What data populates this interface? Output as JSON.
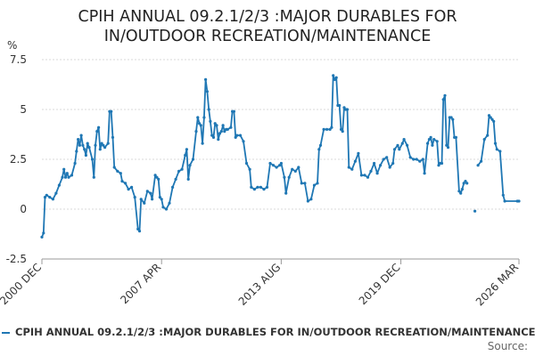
{
  "title": {
    "line1": "CPIH ANNUAL 09.2.1/2/3 :MAJOR DURABLES FOR",
    "line2": "IN/OUTDOOR RECREATION/MAINTENANCE"
  },
  "legend": {
    "label": "CPIH ANNUAL 09.2.1/2/3 :MAJOR DURABLES FOR IN/OUTDOOR RECREATION/MAINTENANCE"
  },
  "source": {
    "label": "Source:"
  },
  "colors": {
    "series": "#1f77b4",
    "grid": "#d9d9d9",
    "axis": "#999999"
  },
  "chart_data": {
    "type": "line",
    "ylabel": "%",
    "ylim": [
      -2.5,
      7.5
    ],
    "yticks": [
      -2.5,
      0,
      2.5,
      5,
      7.5
    ],
    "ytick_labels": [
      "-2.5",
      "0",
      "2.5",
      "5",
      "7.5"
    ],
    "x_range": [
      "2000-12",
      "2026-03"
    ],
    "xticks": [
      {
        "date": "2000-12",
        "label": "2000 DEC"
      },
      {
        "date": "2007-04",
        "label": "2007 APR"
      },
      {
        "date": "2013-08",
        "label": "2013 AUG"
      },
      {
        "date": "2019-12",
        "label": "2019 DEC"
      },
      {
        "date": "2026-03",
        "label": "2026 MAR"
      }
    ],
    "grid": true,
    "legend_position": "bottom",
    "series": [
      {
        "name": "CPIH ANNUAL 09.2.1/2/3 :MAJOR DURABLES FOR IN/OUTDOOR RECREATION/MAINTENANCE",
        "points": [
          [
            "2000-12",
            -1.4
          ],
          [
            "2001-01",
            -1.2
          ],
          [
            "2001-02",
            0.6
          ],
          [
            "2001-03",
            0.7
          ],
          [
            "2001-05",
            0.6
          ],
          [
            "2001-07",
            0.5
          ],
          [
            "2001-09",
            0.8
          ],
          [
            "2001-11",
            1.2
          ],
          [
            "2002-01",
            1.6
          ],
          [
            "2002-02",
            2.0
          ],
          [
            "2002-03",
            1.6
          ],
          [
            "2002-04",
            1.8
          ],
          [
            "2002-05",
            1.6
          ],
          [
            "2002-07",
            1.7
          ],
          [
            "2002-09",
            2.3
          ],
          [
            "2002-10",
            2.9
          ],
          [
            "2002-11",
            3.5
          ],
          [
            "2002-12",
            3.2
          ],
          [
            "2003-01",
            3.7
          ],
          [
            "2003-02",
            3.2
          ],
          [
            "2003-03",
            3.0
          ],
          [
            "2003-04",
            2.7
          ],
          [
            "2003-05",
            3.3
          ],
          [
            "2003-06",
            3.1
          ],
          [
            "2003-08",
            2.5
          ],
          [
            "2003-09",
            1.6
          ],
          [
            "2003-10",
            3.2
          ],
          [
            "2003-11",
            3.9
          ],
          [
            "2003-12",
            4.1
          ],
          [
            "2004-01",
            3.0
          ],
          [
            "2004-02",
            3.3
          ],
          [
            "2004-03",
            3.2
          ],
          [
            "2004-04",
            3.1
          ],
          [
            "2004-06",
            3.3
          ],
          [
            "2004-07",
            4.9
          ],
          [
            "2004-08",
            4.9
          ],
          [
            "2004-09",
            3.6
          ],
          [
            "2004-10",
            2.1
          ],
          [
            "2004-12",
            1.9
          ],
          [
            "2005-02",
            1.8
          ],
          [
            "2005-03",
            1.4
          ],
          [
            "2005-05",
            1.3
          ],
          [
            "2005-07",
            1.0
          ],
          [
            "2005-09",
            1.1
          ],
          [
            "2005-11",
            0.6
          ],
          [
            "2006-01",
            -1.0
          ],
          [
            "2006-02",
            -1.1
          ],
          [
            "2006-03",
            0.5
          ],
          [
            "2006-05",
            0.3
          ],
          [
            "2006-07",
            0.9
          ],
          [
            "2006-09",
            0.8
          ],
          [
            "2006-10",
            0.5
          ],
          [
            "2006-12",
            1.7
          ],
          [
            "2007-01",
            1.6
          ],
          [
            "2007-02",
            1.5
          ],
          [
            "2007-03",
            0.6
          ],
          [
            "2007-04",
            0.5
          ],
          [
            "2007-05",
            0.1
          ],
          [
            "2007-07",
            0.0
          ],
          [
            "2007-09",
            0.3
          ],
          [
            "2007-11",
            1.1
          ],
          [
            "2008-01",
            1.5
          ],
          [
            "2008-03",
            1.9
          ],
          [
            "2008-05",
            2.0
          ],
          [
            "2008-07",
            2.7
          ],
          [
            "2008-08",
            3.0
          ],
          [
            "2008-09",
            1.5
          ],
          [
            "2008-10",
            2.2
          ],
          [
            "2008-12",
            2.5
          ],
          [
            "2009-02",
            3.9
          ],
          [
            "2009-03",
            4.6
          ],
          [
            "2009-04",
            4.3
          ],
          [
            "2009-05",
            4.2
          ],
          [
            "2009-06",
            3.3
          ],
          [
            "2009-07",
            4.6
          ],
          [
            "2009-08",
            6.5
          ],
          [
            "2009-09",
            5.9
          ],
          [
            "2009-10",
            5.0
          ],
          [
            "2009-11",
            4.4
          ],
          [
            "2009-12",
            3.7
          ],
          [
            "2010-01",
            3.6
          ],
          [
            "2010-02",
            4.3
          ],
          [
            "2010-03",
            4.2
          ],
          [
            "2010-04",
            3.5
          ],
          [
            "2010-05",
            3.8
          ],
          [
            "2010-06",
            3.9
          ],
          [
            "2010-07",
            4.2
          ],
          [
            "2010-08",
            3.9
          ],
          [
            "2010-09",
            4.0
          ],
          [
            "2010-10",
            4.0
          ],
          [
            "2010-12",
            4.1
          ],
          [
            "2011-01",
            4.9
          ],
          [
            "2011-02",
            4.9
          ],
          [
            "2011-03",
            3.6
          ],
          [
            "2011-04",
            3.7
          ],
          [
            "2011-06",
            3.7
          ],
          [
            "2011-08",
            3.4
          ],
          [
            "2011-10",
            2.3
          ],
          [
            "2011-12",
            2.0
          ],
          [
            "2012-01",
            1.1
          ],
          [
            "2012-03",
            1.0
          ],
          [
            "2012-05",
            1.1
          ],
          [
            "2012-07",
            1.1
          ],
          [
            "2012-09",
            1.0
          ],
          [
            "2012-11",
            1.1
          ],
          [
            "2013-01",
            2.3
          ],
          [
            "2013-03",
            2.2
          ],
          [
            "2013-05",
            2.1
          ],
          [
            "2013-07",
            2.2
          ],
          [
            "2013-08",
            2.3
          ],
          [
            "2013-10",
            1.6
          ],
          [
            "2013-11",
            0.8
          ],
          [
            "2014-01",
            1.6
          ],
          [
            "2014-03",
            2.0
          ],
          [
            "2014-05",
            1.9
          ],
          [
            "2014-07",
            2.1
          ],
          [
            "2014-09",
            1.3
          ],
          [
            "2014-11",
            1.3
          ],
          [
            "2015-01",
            0.4
          ],
          [
            "2015-03",
            0.5
          ],
          [
            "2015-05",
            1.2
          ],
          [
            "2015-07",
            1.3
          ],
          [
            "2015-08",
            3.0
          ],
          [
            "2015-09",
            3.2
          ],
          [
            "2015-11",
            4.0
          ],
          [
            "2016-01",
            4.0
          ],
          [
            "2016-03",
            4.0
          ],
          [
            "2016-04",
            4.1
          ],
          [
            "2016-05",
            6.7
          ],
          [
            "2016-06",
            6.5
          ],
          [
            "2016-07",
            6.6
          ],
          [
            "2016-08",
            5.2
          ],
          [
            "2016-09",
            5.2
          ],
          [
            "2016-10",
            4.0
          ],
          [
            "2016-11",
            3.9
          ],
          [
            "2016-12",
            5.1
          ],
          [
            "2017-01",
            5.0
          ],
          [
            "2017-02",
            5.0
          ],
          [
            "2017-03",
            2.1
          ],
          [
            "2017-05",
            2.0
          ],
          [
            "2017-07",
            2.4
          ],
          [
            "2017-09",
            2.8
          ],
          [
            "2017-11",
            1.7
          ],
          [
            "2018-01",
            1.7
          ],
          [
            "2018-03",
            1.6
          ],
          [
            "2018-05",
            1.9
          ],
          [
            "2018-07",
            2.3
          ],
          [
            "2018-09",
            1.8
          ],
          [
            "2018-11",
            2.2
          ],
          [
            "2019-01",
            2.5
          ],
          [
            "2019-03",
            2.6
          ],
          [
            "2019-05",
            2.1
          ],
          [
            "2019-07",
            2.3
          ],
          [
            "2019-08",
            3.0
          ],
          [
            "2019-10",
            3.2
          ],
          [
            "2019-11",
            3.0
          ],
          [
            "2020-01",
            3.3
          ],
          [
            "2020-02",
            3.5
          ],
          [
            "2020-04",
            3.2
          ],
          [
            "2020-06",
            2.6
          ],
          [
            "2020-08",
            2.5
          ],
          [
            "2020-10",
            2.5
          ],
          [
            "2020-12",
            2.4
          ],
          [
            "2021-02",
            2.5
          ],
          [
            "2021-03",
            1.8
          ],
          [
            "2021-05",
            3.3
          ],
          [
            "2021-06",
            3.5
          ],
          [
            "2021-07",
            3.6
          ],
          [
            "2021-08",
            3.2
          ],
          [
            "2021-09",
            3.5
          ],
          [
            "2021-11",
            3.4
          ],
          [
            "2021-12",
            2.2
          ],
          [
            "2022-01",
            2.3
          ],
          [
            "2022-02",
            2.3
          ],
          [
            "2022-03",
            5.5
          ],
          [
            "2022-04",
            5.7
          ],
          [
            "2022-05",
            3.2
          ],
          [
            "2022-06",
            3.1
          ],
          [
            "2022-07",
            4.6
          ],
          [
            "2022-08",
            4.6
          ],
          [
            "2022-09",
            4.5
          ],
          [
            "2022-10",
            3.6
          ],
          [
            "2022-11",
            3.6
          ],
          [
            "2023-01",
            0.9
          ],
          [
            "2023-02",
            0.8
          ],
          [
            "2023-03",
            1.0
          ],
          [
            "2023-04",
            1.3
          ],
          [
            "2023-05",
            1.4
          ],
          [
            "2023-06",
            1.3
          ],
          null,
          [
            "2023-11",
            -0.1
          ],
          null,
          [
            "2024-01",
            2.2
          ],
          [
            "2024-03",
            2.4
          ],
          [
            "2024-05",
            3.5
          ],
          [
            "2024-07",
            3.7
          ],
          [
            "2024-08",
            4.7
          ],
          [
            "2024-09",
            4.6
          ],
          [
            "2024-10",
            4.5
          ],
          [
            "2024-11",
            4.4
          ],
          [
            "2024-12",
            3.3
          ],
          [
            "2025-01",
            3.0
          ],
          [
            "2025-03",
            2.9
          ],
          [
            "2025-05",
            0.7
          ],
          [
            "2025-06",
            0.4
          ],
          [
            "2026-02",
            0.4
          ],
          [
            "2026-03",
            0.4
          ]
        ]
      }
    ]
  }
}
